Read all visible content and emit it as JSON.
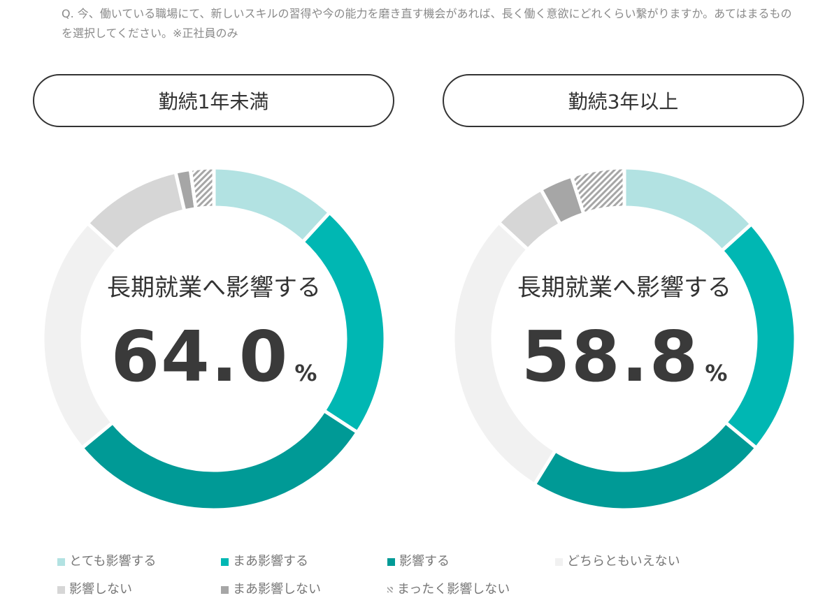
{
  "question": "Q. 今、働いている職場にて、新しいスキルの習得や今の能力を磨き直す機会があれば、長く働く意欲にどれくらい繋がりますか。あてはまるものを選択してください。※正社員のみ",
  "chart_data": [
    {
      "type": "pie",
      "title": "勤続1年未満",
      "center_label": "長期就業へ影響する",
      "center_value": "64.0",
      "center_unit": "%",
      "categories": [
        "とても影響する",
        "まあ影響する",
        "影響する",
        "どちらともいえない",
        "影響しない",
        "まあ影響しない",
        "まったく影響しない"
      ],
      "values": [
        11.8,
        22.4,
        29.8,
        22.8,
        9.6,
        1.4,
        2.2
      ]
    },
    {
      "type": "pie",
      "title": "勤続3年以上",
      "center_label": "長期就業へ影響する",
      "center_value": "58.8",
      "center_unit": "%",
      "categories": [
        "とても影響する",
        "まあ影響する",
        "影響する",
        "どちらともいえない",
        "影響しない",
        "まあ影響しない",
        "まったく影響しない"
      ],
      "values": [
        13.3,
        22.7,
        22.8,
        28.1,
        5.0,
        3.1,
        5.0
      ]
    }
  ],
  "legend": [
    {
      "label": "とても影響する",
      "color": "#b2e2e2"
    },
    {
      "label": "まあ影響する",
      "color": "#00b7b3"
    },
    {
      "label": "影響する",
      "color": "#009a96"
    },
    {
      "label": "どちらともいえない",
      "color": "#f1f1f1"
    },
    {
      "label": "影響しない",
      "color": "#d6d6d6"
    },
    {
      "label": "まあ影響しない",
      "color": "#a6a6a6"
    },
    {
      "label": "まったく影響しない",
      "color": "hatch"
    }
  ]
}
